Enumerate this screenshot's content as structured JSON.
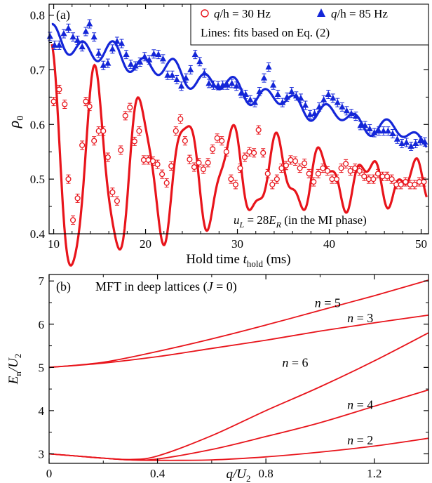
{
  "chart_data": [
    {
      "type": "scatter",
      "panel_label": "(a)",
      "xlabel": "Hold time ",
      "xlabel_var": "t",
      "xlabel_sub": "hold",
      "xlabel_unit": " (ms)",
      "ylabel": "ρ",
      "ylabel_sub": "0",
      "xlim": [
        9.5,
        50.8
      ],
      "ylim": [
        0.4,
        0.82
      ],
      "xticks": [
        10,
        20,
        30,
        40,
        50
      ],
      "yticks": [
        0.4,
        0.5,
        0.6,
        0.7,
        0.8
      ],
      "ytick_labels": [
        "0.4",
        "0.5",
        "0.6",
        "0.7",
        "0.8"
      ],
      "legend": {
        "location": "top-right",
        "entries": [
          {
            "marker": "circle",
            "var": "q",
            "denom": "/h",
            "text": " = 30 Hz"
          },
          {
            "marker": "triangle",
            "var": "q",
            "denom": "/h",
            "text": " = 85 Hz"
          }
        ],
        "note": "Lines: fits based on Eq. (2)"
      },
      "annotation": {
        "var": "u",
        "sub": "L",
        "mid": " = 28",
        "var2": "E",
        "sub2": "R",
        "tail": " (in the MI phase)"
      },
      "series": [
        {
          "marker": "circle",
          "color": "#e8141b",
          "fit": {
            "offset": 0.522,
            "offset_slope": -0.00072,
            "amp": 0.215,
            "decay": 0.052,
            "period": 4.95,
            "phase": 0.55,
            "amp2": 0.02,
            "period2": 2.2
          },
          "points": [
            [
              10.0,
              0.642
            ],
            [
              10.6,
              0.664
            ],
            [
              11.2,
              0.637
            ],
            [
              11.6,
              0.5
            ],
            [
              12.1,
              0.425
            ],
            [
              12.6,
              0.465
            ],
            [
              13.1,
              0.562
            ],
            [
              13.5,
              0.642
            ],
            [
              13.9,
              0.633
            ],
            [
              14.4,
              0.57
            ],
            [
              14.9,
              0.588
            ],
            [
              15.4,
              0.588
            ],
            [
              15.9,
              0.54
            ],
            [
              16.4,
              0.476
            ],
            [
              16.9,
              0.46
            ],
            [
              17.3,
              0.553
            ],
            [
              17.8,
              0.616
            ],
            [
              18.3,
              0.631
            ],
            [
              18.8,
              0.569
            ],
            [
              19.3,
              0.588
            ],
            [
              19.8,
              0.535
            ],
            [
              20.3,
              0.535
            ],
            [
              20.8,
              0.533
            ],
            [
              21.3,
              0.527
            ],
            [
              21.8,
              0.509
            ],
            [
              22.3,
              0.493
            ],
            [
              22.8,
              0.524
            ],
            [
              23.3,
              0.588
            ],
            [
              23.8,
              0.61
            ],
            [
              24.3,
              0.57
            ],
            [
              24.8,
              0.536
            ],
            [
              25.3,
              0.522
            ],
            [
              25.8,
              0.53
            ],
            [
              26.3,
              0.518
            ],
            [
              26.8,
              0.53
            ],
            [
              27.3,
              0.555
            ],
            [
              27.8,
              0.575
            ],
            [
              28.3,
              0.57
            ],
            [
              28.8,
              0.55
            ],
            [
              29.3,
              0.5
            ],
            [
              29.8,
              0.49
            ],
            [
              30.3,
              0.52
            ],
            [
              30.8,
              0.54
            ],
            [
              31.3,
              0.55
            ],
            [
              31.8,
              0.548
            ],
            [
              32.3,
              0.59
            ],
            [
              32.8,
              0.548
            ],
            [
              33.3,
              0.51
            ],
            [
              33.8,
              0.49
            ],
            [
              34.3,
              0.5
            ],
            [
              34.8,
              0.52
            ],
            [
              35.3,
              0.525
            ],
            [
              35.8,
              0.535
            ],
            [
              36.3,
              0.533
            ],
            [
              36.8,
              0.52
            ],
            [
              37.3,
              0.529
            ],
            [
              37.8,
              0.51
            ],
            [
              38.3,
              0.495
            ],
            [
              38.8,
              0.51
            ],
            [
              39.3,
              0.52
            ],
            [
              39.8,
              0.515
            ],
            [
              40.3,
              0.5
            ],
            [
              40.8,
              0.5
            ],
            [
              41.3,
              0.52
            ],
            [
              41.8,
              0.528
            ],
            [
              42.3,
              0.515
            ],
            [
              42.8,
              0.52
            ],
            [
              43.3,
              0.515
            ],
            [
              43.8,
              0.505
            ],
            [
              44.3,
              0.5
            ],
            [
              44.8,
              0.5
            ],
            [
              45.3,
              0.51
            ],
            [
              45.8,
              0.505
            ],
            [
              46.3,
              0.505
            ],
            [
              46.8,
              0.5
            ],
            [
              47.3,
              0.49
            ],
            [
              47.8,
              0.49
            ],
            [
              48.3,
              0.495
            ],
            [
              48.8,
              0.49
            ],
            [
              49.3,
              0.49
            ],
            [
              49.8,
              0.495
            ],
            [
              50.3,
              0.495
            ]
          ]
        },
        {
          "marker": "triangle",
          "color": "#1426d8",
          "fit": {
            "offset": 0.755,
            "offset_slope": -0.0045,
            "amp": 0.02,
            "decay": 0.012,
            "period": 3.3,
            "phase": 0.2,
            "amp2": 0.008,
            "period2": 6.2
          },
          "points": [
            [
              9.6,
              0.761
            ],
            [
              10.1,
              0.745
            ],
            [
              10.6,
              0.745
            ],
            [
              11.1,
              0.766
            ],
            [
              11.6,
              0.776
            ],
            [
              12.1,
              0.76
            ],
            [
              12.6,
              0.754
            ],
            [
              13.1,
              0.742
            ],
            [
              13.5,
              0.77
            ],
            [
              13.9,
              0.784
            ],
            [
              14.4,
              0.76
            ],
            [
              14.9,
              0.73
            ],
            [
              15.4,
              0.708
            ],
            [
              15.9,
              0.712
            ],
            [
              16.4,
              0.738
            ],
            [
              16.9,
              0.752
            ],
            [
              17.4,
              0.748
            ],
            [
              17.9,
              0.728
            ],
            [
              18.4,
              0.71
            ],
            [
              18.9,
              0.707
            ],
            [
              19.4,
              0.714
            ],
            [
              19.9,
              0.724
            ],
            [
              20.4,
              0.718
            ],
            [
              20.9,
              0.729
            ],
            [
              21.4,
              0.728
            ],
            [
              21.9,
              0.72
            ],
            [
              22.4,
              0.69
            ],
            [
              22.9,
              0.69
            ],
            [
              23.4,
              0.682
            ],
            [
              23.9,
              0.67
            ],
            [
              24.4,
              0.685
            ],
            [
              24.9,
              0.7
            ],
            [
              25.4,
              0.728
            ],
            [
              25.9,
              0.715
            ],
            [
              26.4,
              0.694
            ],
            [
              26.9,
              0.675
            ],
            [
              27.4,
              0.672
            ],
            [
              27.9,
              0.671
            ],
            [
              28.4,
              0.672
            ],
            [
              28.9,
              0.672
            ],
            [
              29.4,
              0.675
            ],
            [
              29.9,
              0.67
            ],
            [
              30.4,
              0.657
            ],
            [
              30.9,
              0.655
            ],
            [
              31.4,
              0.645
            ],
            [
              31.9,
              0.64
            ],
            [
              32.4,
              0.66
            ],
            [
              32.9,
              0.685
            ],
            [
              33.4,
              0.705
            ],
            [
              33.9,
              0.672
            ],
            [
              34.4,
              0.655
            ],
            [
              34.9,
              0.64
            ],
            [
              35.4,
              0.65
            ],
            [
              35.9,
              0.66
            ],
            [
              36.4,
              0.652
            ],
            [
              36.9,
              0.648
            ],
            [
              37.4,
              0.635
            ],
            [
              37.9,
              0.618
            ],
            [
              38.4,
              0.62
            ],
            [
              38.9,
              0.632
            ],
            [
              39.4,
              0.645
            ],
            [
              39.9,
              0.655
            ],
            [
              40.4,
              0.648
            ],
            [
              40.9,
              0.64
            ],
            [
              41.4,
              0.632
            ],
            [
              41.9,
              0.625
            ],
            [
              42.4,
              0.62
            ],
            [
              42.9,
              0.615
            ],
            [
              43.4,
              0.598
            ],
            [
              43.9,
              0.598
            ],
            [
              44.4,
              0.592
            ],
            [
              44.9,
              0.585
            ],
            [
              45.4,
              0.588
            ],
            [
              45.9,
              0.588
            ],
            [
              46.4,
              0.588
            ],
            [
              46.9,
              0.583
            ],
            [
              47.4,
              0.573
            ],
            [
              47.9,
              0.565
            ],
            [
              48.4,
              0.567
            ],
            [
              48.9,
              0.56
            ],
            [
              49.4,
              0.565
            ],
            [
              49.9,
              0.57
            ],
            [
              50.4,
              0.568
            ]
          ]
        }
      ]
    },
    {
      "type": "line",
      "panel_label": "(b)",
      "title_plain": "MFT in deep lattices (",
      "title_var": "J",
      "title_tail": " = 0)",
      "xlabel_var": "q",
      "xlabel_denom": "/U",
      "xlabel_sub": "2",
      "ylabel_var": "E",
      "ylabel_sub": "n",
      "ylabel_denom": "/U",
      "ylabel_sub2": "2",
      "xlim": [
        0,
        1.4
      ],
      "ylim": [
        2.78,
        7.15
      ],
      "xticks": [
        0,
        0.4,
        0.8,
        1.2
      ],
      "xtick_labels": [
        "0",
        "0.4",
        "0.8",
        "1.2"
      ],
      "yticks": [
        3,
        4,
        5,
        6,
        7
      ],
      "ytick_labels": [
        "3",
        "4",
        "5",
        "6",
        "7"
      ],
      "color": "#e8141b",
      "series": [
        {
          "label_var": "n",
          "label_text": " = 5",
          "label_at": [
            0.98,
            6.49
          ],
          "x": [
            0,
            0.2,
            0.4,
            0.6,
            0.8,
            1.0,
            1.2,
            1.4
          ],
          "y": [
            5.0,
            5.12,
            5.37,
            5.66,
            5.98,
            6.32,
            6.66,
            7.02
          ]
        },
        {
          "label_var": "n",
          "label_text": " = 3",
          "label_at": [
            1.1,
            6.14
          ],
          "x": [
            0,
            0.2,
            0.4,
            0.6,
            0.8,
            1.0,
            1.2,
            1.4
          ],
          "y": [
            5.0,
            5.1,
            5.25,
            5.44,
            5.63,
            5.84,
            6.03,
            6.21
          ]
        },
        {
          "label_var": "n",
          "label_text": " = 6",
          "label_at": [
            0.86,
            5.11
          ],
          "x": [
            0,
            0.1,
            0.2,
            0.3,
            0.4,
            0.6,
            0.8,
            1.0,
            1.2,
            1.4
          ],
          "y": [
            3.0,
            2.95,
            2.9,
            2.87,
            2.95,
            3.42,
            4.0,
            4.55,
            5.15,
            5.8
          ]
        },
        {
          "label_var": "n",
          "label_text": " = 4",
          "label_at": [
            1.1,
            4.14
          ],
          "x": [
            0,
            0.1,
            0.2,
            0.3,
            0.4,
            0.6,
            0.8,
            1.0,
            1.2,
            1.4
          ],
          "y": [
            3.0,
            2.95,
            2.9,
            2.86,
            2.88,
            3.1,
            3.4,
            3.72,
            4.1,
            4.48
          ]
        },
        {
          "label_var": "n",
          "label_text": " = 2",
          "label_at": [
            1.1,
            3.32
          ],
          "x": [
            0,
            0.1,
            0.2,
            0.3,
            0.4,
            0.6,
            0.8,
            1.0,
            1.2,
            1.4
          ],
          "y": [
            3.0,
            2.95,
            2.9,
            2.86,
            2.85,
            2.86,
            2.93,
            3.04,
            3.18,
            3.36
          ]
        }
      ]
    }
  ]
}
